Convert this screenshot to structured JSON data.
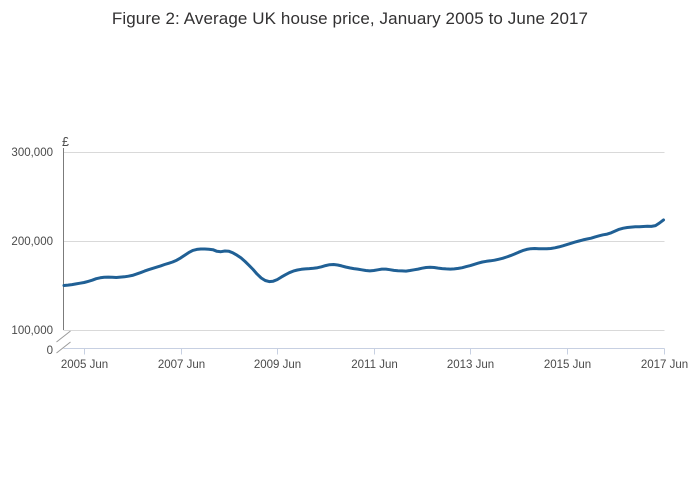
{
  "chart_data": {
    "type": "line",
    "title": "Figure 2: Average UK house price, January 2005 to June 2017",
    "unit_label": "£",
    "legend": "none",
    "grid": "horizontal",
    "axis_break_at_zero": true,
    "colors": {
      "line": "#206095",
      "gridline": "#d9d9d9",
      "y_axis": "#7b7b7b",
      "x_axis": "#c7d0e2",
      "break_mark": "#9a9a9a",
      "tick_text": "#4a4a4a",
      "title_text": "#323132"
    },
    "y_axis": {
      "label": "£",
      "ticks": [
        {
          "label": "0",
          "value": 0
        },
        {
          "label": "100,000",
          "value": 100000
        },
        {
          "label": "200,000",
          "value": 200000
        },
        {
          "label": "300,000",
          "value": 300000
        }
      ],
      "display_range_top": 310000
    },
    "x_axis": {
      "start": "2005 Jan",
      "end": "2017 Jun",
      "frequency": "monthly",
      "ticks": [
        {
          "label": "2005 Jun",
          "month_index": 5
        },
        {
          "label": "2007 Jun",
          "month_index": 29
        },
        {
          "label": "2009 Jun",
          "month_index": 53
        },
        {
          "label": "2011 Jun",
          "month_index": 77
        },
        {
          "label": "2013 Jun",
          "month_index": 101
        },
        {
          "label": "2015 Jun",
          "month_index": 125
        },
        {
          "label": "2017 Jun",
          "month_index": 149
        }
      ]
    },
    "series": [
      {
        "name": "Average UK house price",
        "unit": "GBP",
        "values": [
          150000,
          150400,
          151000,
          151800,
          152600,
          153400,
          154600,
          156000,
          157600,
          158600,
          159200,
          159400,
          159300,
          159000,
          159400,
          159800,
          160400,
          161400,
          162800,
          164400,
          166200,
          167800,
          169200,
          170600,
          172000,
          173600,
          175000,
          176400,
          178400,
          181000,
          184000,
          187000,
          189400,
          190600,
          191000,
          191000,
          190800,
          190200,
          188400,
          188000,
          188800,
          188400,
          186600,
          184000,
          181000,
          177000,
          172600,
          168000,
          162800,
          158400,
          155600,
          154400,
          154800,
          156600,
          159400,
          162000,
          164400,
          166200,
          167400,
          168200,
          168600,
          169000,
          169400,
          170000,
          171000,
          172400,
          173400,
          173600,
          173000,
          172000,
          170800,
          169800,
          169000,
          168400,
          167600,
          166800,
          166400,
          166800,
          167600,
          168400,
          168400,
          167800,
          167000,
          166600,
          166400,
          166200,
          166800,
          167600,
          168400,
          169400,
          170200,
          170600,
          170200,
          169600,
          169000,
          168600,
          168400,
          168600,
          169200,
          170000,
          171200,
          172400,
          173800,
          175200,
          176400,
          177200,
          177800,
          178400,
          179400,
          180600,
          182000,
          183600,
          185400,
          187400,
          189200,
          190600,
          191400,
          191600,
          191400,
          191200,
          191200,
          191600,
          192400,
          193400,
          194600,
          196000,
          197400,
          198800,
          200000,
          201200,
          202200,
          203200,
          204600,
          205800,
          207000,
          207800,
          209200,
          211200,
          213200,
          214400,
          215200,
          215600,
          215900,
          216100,
          216300,
          216500,
          216400,
          217300,
          220200,
          223700
        ]
      }
    ]
  }
}
